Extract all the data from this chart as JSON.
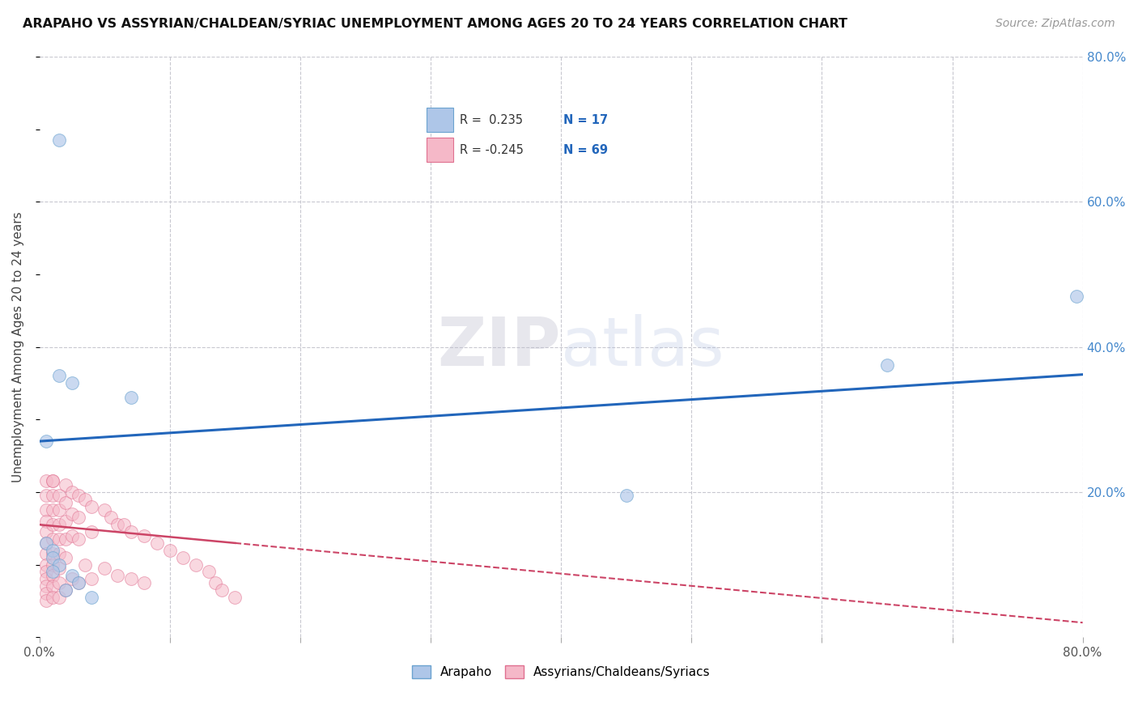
{
  "title": "ARAPAHO VS ASSYRIAN/CHALDEAN/SYRIAC UNEMPLOYMENT AMONG AGES 20 TO 24 YEARS CORRELATION CHART",
  "source": "Source: ZipAtlas.com",
  "ylabel": "Unemployment Among Ages 20 to 24 years",
  "xlim": [
    0,
    0.8
  ],
  "ylim": [
    0,
    0.8
  ],
  "background_color": "#ffffff",
  "grid_color": "#c8c8d0",
  "arapaho_color": "#aec6e8",
  "assyrian_color": "#f5b8c8",
  "arapaho_edge": "#6ba3d0",
  "assyrian_edge": "#e07090",
  "trend_arapaho_color": "#2266bb",
  "trend_assyrian_color": "#cc4466",
  "legend_text_color": "#333333",
  "legend_val_color": "#2266bb",
  "legend_R_arapaho": "R =  0.235",
  "legend_N_arapaho": "N = 17",
  "legend_R_assyrian": "R = -0.245",
  "legend_N_assyrian": "N = 69",
  "legend_label_arapaho": "Arapaho",
  "legend_label_assyrian": "Assyrians/Chaldeans/Syriacs",
  "arapaho_x": [
    0.015,
    0.015,
    0.025,
    0.07,
    0.65,
    0.795,
    0.45,
    0.005,
    0.005,
    0.01,
    0.01,
    0.015,
    0.01,
    0.025,
    0.03,
    0.02,
    0.04
  ],
  "arapaho_y": [
    0.685,
    0.36,
    0.35,
    0.33,
    0.375,
    0.47,
    0.195,
    0.27,
    0.13,
    0.12,
    0.11,
    0.1,
    0.09,
    0.085,
    0.075,
    0.065,
    0.055
  ],
  "assyrian_x": [
    0.005,
    0.005,
    0.005,
    0.005,
    0.005,
    0.005,
    0.005,
    0.005,
    0.005,
    0.005,
    0.005,
    0.005,
    0.005,
    0.01,
    0.01,
    0.01,
    0.01,
    0.01,
    0.01,
    0.01,
    0.01,
    0.01,
    0.01,
    0.01,
    0.015,
    0.015,
    0.015,
    0.015,
    0.015,
    0.015,
    0.015,
    0.015,
    0.02,
    0.02,
    0.02,
    0.02,
    0.02,
    0.02,
    0.025,
    0.025,
    0.025,
    0.025,
    0.03,
    0.03,
    0.03,
    0.03,
    0.035,
    0.035,
    0.04,
    0.04,
    0.04,
    0.05,
    0.05,
    0.055,
    0.06,
    0.06,
    0.065,
    0.07,
    0.07,
    0.08,
    0.08,
    0.09,
    0.1,
    0.11,
    0.12,
    0.13,
    0.135,
    0.14,
    0.15
  ],
  "assyrian_y": [
    0.215,
    0.195,
    0.175,
    0.16,
    0.145,
    0.13,
    0.115,
    0.1,
    0.09,
    0.08,
    0.07,
    0.06,
    0.05,
    0.215,
    0.195,
    0.175,
    0.155,
    0.135,
    0.115,
    0.1,
    0.085,
    0.07,
    0.055,
    0.215,
    0.195,
    0.175,
    0.155,
    0.135,
    0.115,
    0.095,
    0.075,
    0.055,
    0.21,
    0.185,
    0.16,
    0.135,
    0.11,
    0.065,
    0.2,
    0.17,
    0.14,
    0.08,
    0.195,
    0.165,
    0.135,
    0.075,
    0.19,
    0.1,
    0.18,
    0.145,
    0.08,
    0.175,
    0.095,
    0.165,
    0.155,
    0.085,
    0.155,
    0.145,
    0.08,
    0.14,
    0.075,
    0.13,
    0.12,
    0.11,
    0.1,
    0.09,
    0.075,
    0.065,
    0.055
  ],
  "watermark_zip": "ZIP",
  "watermark_atlas": "atlas",
  "marker_size": 130,
  "alpha_arapaho": 0.65,
  "alpha_assyrian": 0.55,
  "trend_arapaho_x0": 0.0,
  "trend_arapaho_y0": 0.27,
  "trend_arapaho_x1": 0.8,
  "trend_arapaho_y1": 0.362,
  "trend_assyrian_x0": 0.0,
  "trend_assyrian_y0": 0.155,
  "trend_assyrian_x1": 0.8,
  "trend_assyrian_y1": 0.02,
  "ytick_color": "#4488cc"
}
